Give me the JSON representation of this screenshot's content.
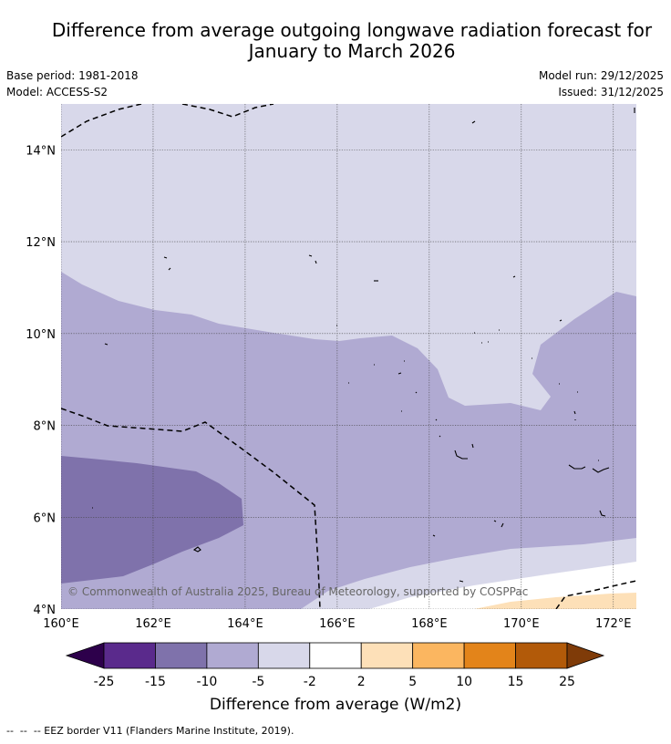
{
  "title": {
    "line1": "Difference from average outgoing longwave radiation forecast for",
    "line2": "January to March 2026"
  },
  "meta": {
    "base_period": "Base period: 1981-2018",
    "model": "Model: ACCESS-S2",
    "model_run": "Model run: 29/12/2025",
    "issued": "Issued: 31/12/2025"
  },
  "map": {
    "lat_labels": [
      "14°N",
      "12°N",
      "10°N",
      "8°N",
      "6°N",
      "4°N"
    ],
    "lat_values": [
      14,
      12,
      10,
      8,
      6,
      4
    ],
    "lon_labels": [
      "160°E",
      "162°E",
      "164°E",
      "166°E",
      "168°E",
      "170°E",
      "172°E"
    ],
    "lon_values": [
      160,
      162,
      164,
      166,
      168,
      170,
      172
    ],
    "copyright": "© Commonwealth of Australia 2025, Bureau of Meteorology, supported by COSPPac"
  },
  "colorbar": {
    "ticks": [
      "-25",
      "-15",
      "-10",
      "-5",
      "-2",
      "2",
      "5",
      "10",
      "15",
      "25"
    ],
    "colors": [
      "#5a2a8c",
      "#7f72ab",
      "#b0aad2",
      "#d8d8ea",
      "#ffffff",
      "#fde0b8",
      "#fbb660",
      "#e3841a",
      "#b25a09"
    ],
    "low_extend": "#2d004b",
    "high_extend": "#7f3b08",
    "label": "Difference from average (W/m2)"
  },
  "eez_note": "--  --  -- EEZ border V11 (Flanders Marine Institute, 2019)."
}
